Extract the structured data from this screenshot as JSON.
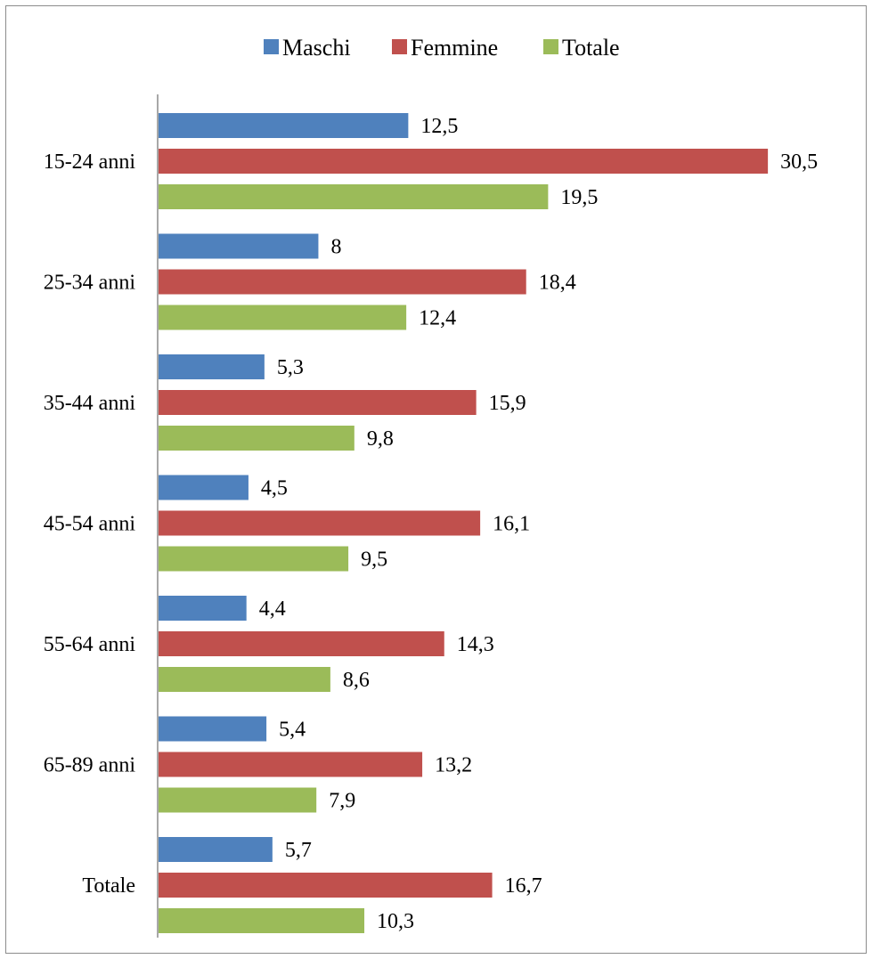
{
  "chart_data": {
    "type": "bar",
    "orientation": "horizontal",
    "categories": [
      "15-24 anni",
      "25-34 anni",
      "35-44 anni",
      "45-54 anni",
      "55-64 anni",
      "65-89 anni",
      "Totale"
    ],
    "series": [
      {
        "name": "Maschi",
        "color": "#4f81bd",
        "values": [
          12.5,
          8,
          5.3,
          4.5,
          4.4,
          5.4,
          5.7
        ],
        "labels": [
          "12,5",
          "8",
          "5,3",
          "4,5",
          "4,4",
          "5,4",
          "5,7"
        ]
      },
      {
        "name": "Femmine",
        "color": "#c0504d",
        "values": [
          30.5,
          18.4,
          15.9,
          16.1,
          14.3,
          13.2,
          16.7
        ],
        "labels": [
          "30,5",
          "18,4",
          "15,9",
          "16,1",
          "14,3",
          "13,2",
          "16,7"
        ]
      },
      {
        "name": "Totale",
        "color": "#9bbb59",
        "values": [
          19.5,
          12.4,
          9.8,
          9.5,
          8.6,
          7.9,
          10.3
        ],
        "labels": [
          "19,5",
          "12,4",
          "9,8",
          "9,5",
          "8,6",
          "7,9",
          "10,3"
        ]
      }
    ],
    "legend_position": "top",
    "grid": false,
    "xaxis_visible": false
  }
}
